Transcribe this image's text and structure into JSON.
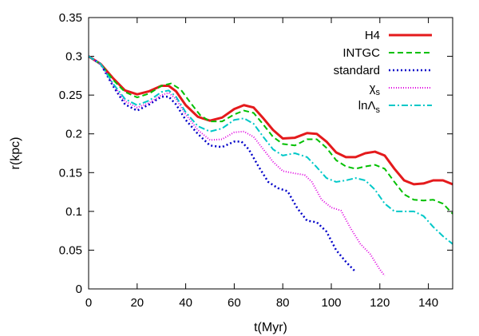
{
  "chart_data": {
    "type": "line",
    "xlabel": "t(Myr)",
    "ylabel": "r(kpc)",
    "xlim": [
      0,
      150
    ],
    "ylim": [
      0,
      0.35
    ],
    "xticks": [
      0,
      20,
      40,
      60,
      80,
      100,
      120,
      140
    ],
    "yticks": [
      0,
      0.05,
      0.1,
      0.15,
      0.2,
      0.25,
      0.3,
      0.35
    ],
    "xtick_labels": [
      "0",
      "20",
      "40",
      "60",
      "80",
      "100",
      "120",
      "140"
    ],
    "ytick_labels": [
      "0",
      "0.05",
      "0.1",
      "0.15",
      "0.2",
      "0.25",
      "0.3",
      "0.35"
    ],
    "grid": false,
    "legend_position": "top-right",
    "series": [
      {
        "name": "H4",
        "legend_main": "H4",
        "legend_sub": "",
        "color": "#e41a1c",
        "dash": "solid",
        "width": 3,
        "x": [
          0,
          5,
          10,
          15,
          20,
          25,
          30,
          33,
          36,
          40,
          45,
          50,
          55,
          60,
          64,
          68,
          72,
          76,
          80,
          85,
          90,
          94,
          98,
          102,
          106,
          110,
          114,
          118,
          122,
          126,
          130,
          134,
          138,
          142,
          146,
          150
        ],
        "y": [
          0.3,
          0.29,
          0.272,
          0.256,
          0.251,
          0.255,
          0.262,
          0.262,
          0.255,
          0.237,
          0.222,
          0.217,
          0.221,
          0.232,
          0.237,
          0.234,
          0.22,
          0.205,
          0.194,
          0.195,
          0.201,
          0.2,
          0.19,
          0.176,
          0.17,
          0.17,
          0.175,
          0.177,
          0.172,
          0.155,
          0.14,
          0.135,
          0.136,
          0.14,
          0.14,
          0.135
        ]
      },
      {
        "name": "INTGC",
        "legend_main": "INTGC",
        "legend_sub": "",
        "color": "#00c000",
        "dash": "7,4",
        "width": 2,
        "x": [
          0,
          5,
          10,
          15,
          20,
          25,
          30,
          34,
          38,
          42,
          46,
          50,
          55,
          60,
          64,
          68,
          72,
          76,
          80,
          85,
          90,
          94,
          98,
          102,
          106,
          110,
          114,
          118,
          122,
          126,
          130,
          134,
          138,
          142,
          146,
          150
        ],
        "y": [
          0.3,
          0.29,
          0.27,
          0.254,
          0.247,
          0.252,
          0.262,
          0.265,
          0.257,
          0.24,
          0.224,
          0.216,
          0.216,
          0.225,
          0.23,
          0.227,
          0.212,
          0.196,
          0.187,
          0.185,
          0.193,
          0.193,
          0.182,
          0.166,
          0.158,
          0.155,
          0.158,
          0.16,
          0.155,
          0.138,
          0.122,
          0.115,
          0.114,
          0.115,
          0.11,
          0.097
        ]
      },
      {
        "name": "standard",
        "legend_main": "standard",
        "legend_sub": "",
        "color": "#0000c8",
        "dash": "2,3",
        "width": 2.5,
        "x": [
          0,
          5,
          10,
          15,
          20,
          25,
          30,
          33,
          36,
          40,
          45,
          50,
          55,
          60,
          63,
          66,
          70,
          74,
          78,
          82,
          86,
          90,
          94,
          98,
          102,
          106,
          110
        ],
        "y": [
          0.3,
          0.29,
          0.262,
          0.238,
          0.23,
          0.238,
          0.248,
          0.248,
          0.238,
          0.218,
          0.2,
          0.185,
          0.183,
          0.19,
          0.19,
          0.18,
          0.158,
          0.138,
          0.13,
          0.126,
          0.104,
          0.088,
          0.086,
          0.074,
          0.05,
          0.035,
          0.022
        ]
      },
      {
        "name": "χs",
        "legend_main": "χ",
        "legend_sub": "s",
        "color": "#e000e0",
        "dash": "1,2",
        "width": 2,
        "x": [
          0,
          5,
          10,
          15,
          20,
          25,
          30,
          33,
          36,
          40,
          45,
          50,
          55,
          60,
          64,
          68,
          72,
          76,
          80,
          85,
          89,
          92,
          96,
          100,
          104,
          108,
          112,
          116,
          120,
          122
        ],
        "y": [
          0.3,
          0.29,
          0.264,
          0.242,
          0.234,
          0.24,
          0.25,
          0.253,
          0.245,
          0.225,
          0.205,
          0.192,
          0.193,
          0.202,
          0.203,
          0.196,
          0.18,
          0.164,
          0.152,
          0.149,
          0.147,
          0.138,
          0.115,
          0.105,
          0.101,
          0.078,
          0.058,
          0.045,
          0.025,
          0.017
        ]
      },
      {
        "name": "lnΛs",
        "legend_main": "lnΛ",
        "legend_sub": "s",
        "color": "#00c8c8",
        "dash": "8,3,2,3",
        "width": 2,
        "x": [
          0,
          5,
          10,
          15,
          20,
          25,
          30,
          33,
          36,
          40,
          45,
          50,
          55,
          60,
          64,
          68,
          72,
          76,
          80,
          85,
          90,
          94,
          98,
          102,
          106,
          110,
          114,
          118,
          122,
          126,
          130,
          134,
          138,
          142,
          146,
          150
        ],
        "y": [
          0.3,
          0.29,
          0.265,
          0.245,
          0.237,
          0.243,
          0.254,
          0.256,
          0.248,
          0.228,
          0.21,
          0.203,
          0.207,
          0.218,
          0.22,
          0.213,
          0.196,
          0.18,
          0.172,
          0.175,
          0.17,
          0.157,
          0.143,
          0.138,
          0.14,
          0.143,
          0.14,
          0.128,
          0.11,
          0.1,
          0.1,
          0.1,
          0.094,
          0.08,
          0.068,
          0.058
        ]
      }
    ]
  }
}
